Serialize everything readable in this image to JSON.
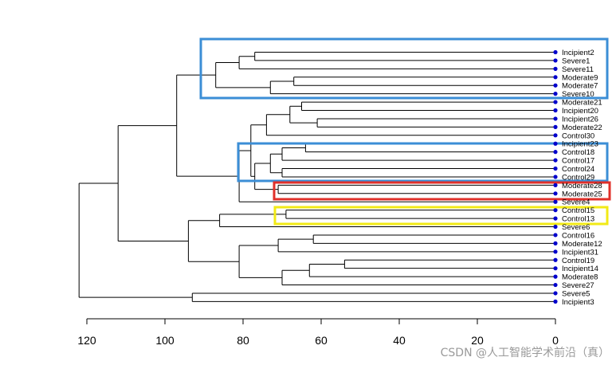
{
  "chart_data": {
    "type": "dendrogram",
    "orientation": "horizontal",
    "title": "",
    "xlabel": "",
    "ylabel": "",
    "xlim": [
      120,
      0
    ],
    "x_ticks": [
      120,
      100,
      80,
      60,
      40,
      20,
      0
    ],
    "leaf_marker_color": "#0000cc",
    "leaves": [
      "Incipient2",
      "Severe1",
      "Severe11",
      "Moderate9",
      "Moderate7",
      "Severe10",
      "Moderate21",
      "Incipient20",
      "Incipient26",
      "Moderate22",
      "Control30",
      "Incipient23",
      "Control18",
      "Control17",
      "Control24",
      "Control29",
      "Moderate28",
      "Moderate25",
      "Severe4",
      "Control15",
      "Control13",
      "Severe6",
      "Control16",
      "Moderate12",
      "Incipient31",
      "Control19",
      "Incipient14",
      "Moderate8",
      "Severe27",
      "Severe5",
      "Incipient3"
    ],
    "merges": [
      {
        "left": "Incipient2",
        "right": "Severe1",
        "height": 77
      },
      {
        "left": "Moderate9",
        "right": "Moderate7",
        "height": 67
      },
      {
        "left": "Moderate21",
        "right": "Incipient20",
        "height": 65
      },
      {
        "left": "Incipient26",
        "right": "Moderate22",
        "height": 61
      },
      {
        "left": "Incipient23",
        "right": "Control18",
        "height": 64
      },
      {
        "left": "Control24",
        "right": "Control29",
        "height": 70
      },
      {
        "left": "Moderate28",
        "right": "Moderate25",
        "height": 71
      },
      {
        "left": "Control15",
        "right": "Control13",
        "height": 69
      },
      {
        "left": "Control16",
        "right": "Moderate12",
        "height": 62
      },
      {
        "left": "Control19",
        "right": "Incipient14",
        "height": 54
      },
      {
        "left": "Severe5",
        "right": "Incipient3",
        "height": 93
      },
      {
        "left": "(Incipient2,Severe1)",
        "right": "Severe11",
        "height": 81
      },
      {
        "left": "(Moderate9,Moderate7)",
        "right": "Severe10",
        "height": 73
      },
      {
        "left": "(Incipient23,Control18)",
        "right": "Control17",
        "height": 70
      },
      {
        "left": "(Control19,Incipient14)",
        "right": "Moderate8",
        "height": 63
      },
      {
        "left": "(Incipient2,Severe1,Severe11)",
        "right": "(Moderate9,Moderate7,Severe10)",
        "height": 87
      },
      {
        "left": "(Moderate21,Incipient20)",
        "right": "(Incipient26,Moderate22)",
        "height": 68
      },
      {
        "left": "(Incipient23,Control18,Control17)",
        "right": "(Control24,Control29)",
        "height": 73
      },
      {
        "left": "(Control19,Incipient14,Moderate8)",
        "right": "Severe27",
        "height": 70
      },
      {
        "left": "(Moderate21,...,Moderate22)",
        "right": "Control30",
        "height": 74
      },
      {
        "left": "(Incipient23,...,Control29)",
        "right": "(Moderate28,Moderate25)",
        "height": 77
      },
      {
        "left": "(Control16,Moderate12)",
        "right": "Incipient31",
        "height": 71
      },
      {
        "left": "(Moderate21,...,Control30)",
        "right": "(Incipient23,...,Moderate25)",
        "height": 78
      },
      {
        "left": "(Control16,Moderate12,Incipient31)",
        "right": "(Control19,...,Severe27)",
        "height": 81
      },
      {
        "left": "(Moderate21,...,Moderate25)",
        "right": "Severe4",
        "height": 81
      },
      {
        "left": "(Control15,Control13)",
        "right": "Severe6",
        "height": 86
      },
      {
        "left": "(Control15,Control13,Severe6)",
        "right": "(Control16,...,Severe27)",
        "height": 94
      },
      {
        "left": "(Incipient2,...,Severe10)",
        "right": "(Moderate21,...,Severe4)",
        "height": 97
      },
      {
        "left": "(Incipient2,...,Severe4)",
        "right": "(Control15,...,Severe27)",
        "height": 112
      },
      {
        "left": "(Incipient2,...,Severe27)",
        "right": "(Severe5,Incipient3)",
        "height": 122
      }
    ],
    "highlight_boxes": [
      {
        "color": "#3b8ed6",
        "from_leaf": "Incipient2",
        "to_leaf": "Severe10"
      },
      {
        "color": "#3b8ed6",
        "from_leaf": "Incipient23",
        "to_leaf": "Control29"
      },
      {
        "color": "#e0302a",
        "from_leaf": "Moderate28",
        "to_leaf": "Moderate25"
      },
      {
        "color": "#f2ea16",
        "from_leaf": "Control15",
        "to_leaf": "Control13"
      }
    ]
  },
  "watermark": "CSDN @人工智能学术前沿（真）"
}
